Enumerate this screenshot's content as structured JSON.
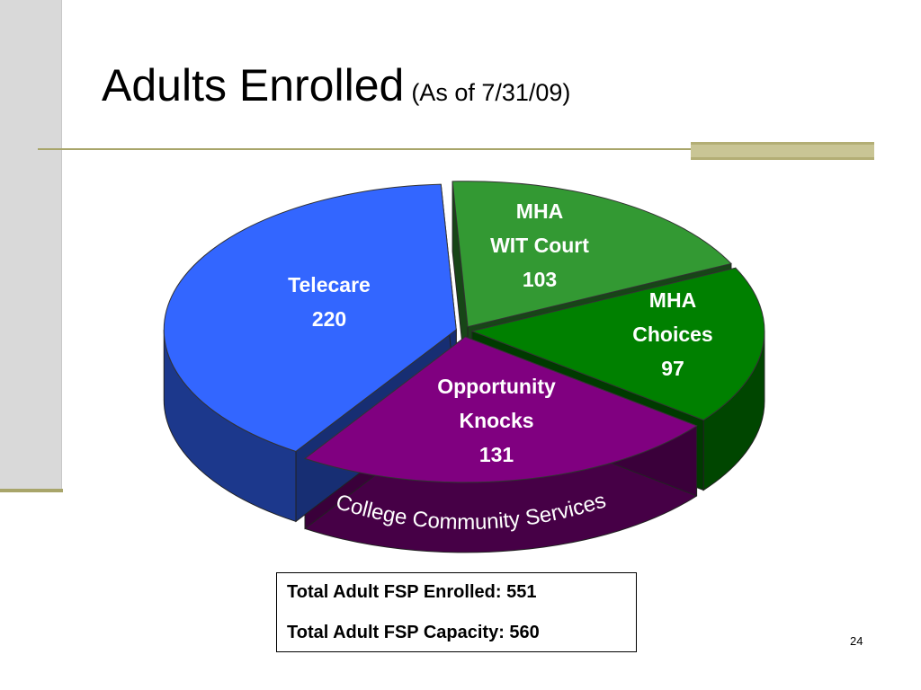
{
  "slide": {
    "title": "Adults Enrolled",
    "subtitle": "(As of 7/31/09)",
    "page_number": "24"
  },
  "totals": {
    "enrolled": "Total Adult FSP Enrolled: 551",
    "capacity": "Total Adult FSP Capacity: 560"
  },
  "chart_data": {
    "type": "pie",
    "title": "",
    "slices": [
      {
        "label_lines": [
          "MHA",
          "WIT Court"
        ],
        "value": 103,
        "color": "#339933"
      },
      {
        "label_lines": [
          "MHA",
          "Choices"
        ],
        "value": 97,
        "color": "#008000"
      },
      {
        "label_lines": [
          "Opportunity",
          "Knocks"
        ],
        "value": 131,
        "color": "#800080"
      },
      {
        "label_lines": [
          "Telecare"
        ],
        "value": 220,
        "color": "#3366ff"
      }
    ],
    "group_annotation": "College Community Services"
  },
  "colors": {
    "accent_rule": "#a8a56a",
    "sidebar": "#d9d9d9"
  }
}
